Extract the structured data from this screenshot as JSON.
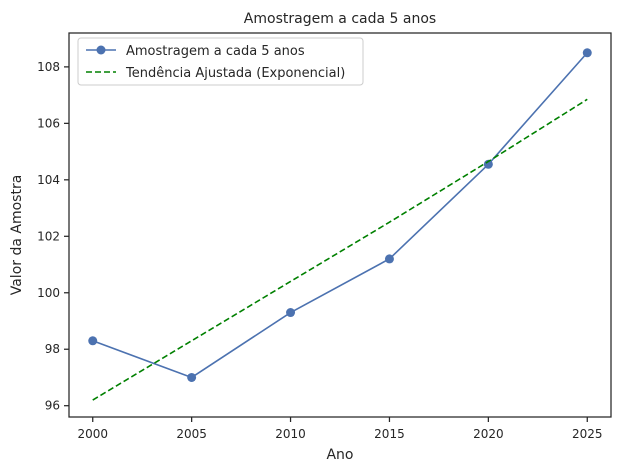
{
  "chart_data": {
    "type": "line",
    "title": "Amostragem a cada 5 anos",
    "xlabel": "Ano",
    "ylabel": "Valor da Amostra",
    "xlim": [
      1998.8,
      2026.2
    ],
    "ylim": [
      95.6,
      109.2
    ],
    "xticks": [
      2000,
      2005,
      2010,
      2015,
      2020,
      2025
    ],
    "yticks": [
      96,
      98,
      100,
      102,
      104,
      106,
      108
    ],
    "grid": false,
    "legend_position": "top-left",
    "series": [
      {
        "name": "Amostragem a cada 5 anos",
        "style": "solid-marker",
        "color": "#4c72b0",
        "x": [
          2000,
          2005,
          2010,
          2015,
          2020,
          2025
        ],
        "y": [
          98.3,
          97.0,
          99.3,
          101.2,
          104.55,
          108.5
        ]
      },
      {
        "name": "Tendência Ajustada (Exponencial)",
        "style": "dashed",
        "color": "#008000",
        "x": [
          2000,
          2005,
          2010,
          2015,
          2020,
          2025
        ],
        "y": [
          96.2,
          98.3,
          100.4,
          102.5,
          104.65,
          106.85
        ]
      }
    ]
  }
}
